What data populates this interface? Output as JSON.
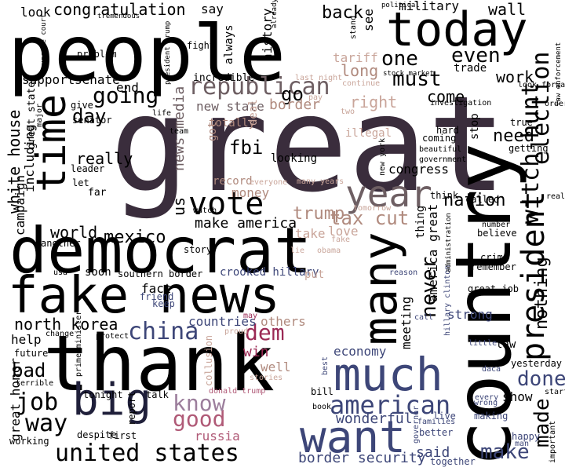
{
  "words": [
    {
      "text": "great",
      "color": "#3a2d3c"
    },
    {
      "text": "people",
      "color": "#000000"
    },
    {
      "text": "country",
      "color": "#000000"
    },
    {
      "text": "thank",
      "color": "#000000"
    },
    {
      "text": "democrat",
      "color": "#000000"
    },
    {
      "text": "fake news",
      "color": "#000000"
    },
    {
      "text": "today",
      "color": "#000000"
    },
    {
      "text": "many",
      "color": "#000000"
    },
    {
      "text": "much",
      "color": "#3d4678"
    },
    {
      "text": "want",
      "color": "#3d4678"
    },
    {
      "text": "big",
      "color": "#1f1f3a"
    },
    {
      "text": "time",
      "color": "#000000"
    },
    {
      "text": "year",
      "color": "#6e5f63"
    },
    {
      "text": "vote",
      "color": "#000000"
    },
    {
      "text": "president",
      "color": "#000000"
    },
    {
      "text": "united states",
      "color": "#000000"
    },
    {
      "text": "american",
      "color": "#3d4678"
    },
    {
      "text": "republican",
      "color": "#6e5f63"
    },
    {
      "text": "witch hunt",
      "color": "#000000"
    },
    {
      "text": "election",
      "color": "#000000"
    },
    {
      "text": "china",
      "color": "#3d4678"
    },
    {
      "text": "good",
      "color": "#b05a77"
    },
    {
      "text": "know",
      "color": "#9c7e9c"
    },
    {
      "text": "job",
      "color": "#000000"
    },
    {
      "text": "way",
      "color": "#000000"
    },
    {
      "text": "dem",
      "color": "#9b2a55"
    },
    {
      "text": "going",
      "color": "#000000"
    },
    {
      "text": "must",
      "color": "#000000"
    },
    {
      "text": "one",
      "color": "#000000"
    },
    {
      "text": "even",
      "color": "#000000"
    },
    {
      "text": "done",
      "color": "#3d4678"
    },
    {
      "text": "make",
      "color": "#3d4678"
    },
    {
      "text": "made",
      "color": "#000000"
    },
    {
      "text": "never",
      "color": "#000000"
    },
    {
      "text": "nothing",
      "color": "#000000"
    },
    {
      "text": "mexico",
      "color": "#000000"
    },
    {
      "text": "world",
      "color": "#000000"
    },
    {
      "text": "make america",
      "color": "#000000"
    },
    {
      "text": "tax cut",
      "color": "#b08a7e"
    },
    {
      "text": "trump",
      "color": "#b08a7e"
    },
    {
      "text": "nation",
      "color": "#000000"
    },
    {
      "text": "north korea",
      "color": "#000000"
    },
    {
      "text": "day",
      "color": "#000000"
    },
    {
      "text": "bad",
      "color": "#000000"
    },
    {
      "text": "congratulation",
      "color": "#000000"
    },
    {
      "text": "back",
      "color": "#000000"
    },
    {
      "text": "go",
      "color": "#000000"
    },
    {
      "text": "wall",
      "color": "#000000"
    },
    {
      "text": "military",
      "color": "#000000"
    },
    {
      "text": "work",
      "color": "#000000"
    },
    {
      "text": "need",
      "color": "#000000"
    },
    {
      "text": "come",
      "color": "#000000"
    },
    {
      "text": "long",
      "color": "#b08a7e"
    },
    {
      "text": "right",
      "color": "#c9a59a"
    },
    {
      "text": "border",
      "color": "#b08a7e"
    },
    {
      "text": "fbi",
      "color": "#000000"
    },
    {
      "text": "us",
      "color": "#000000"
    },
    {
      "text": "news media",
      "color": "#6e5f63"
    },
    {
      "text": "really",
      "color": "#000000"
    },
    {
      "text": "end",
      "color": "#000000"
    },
    {
      "text": "senate",
      "color": "#000000"
    },
    {
      "text": "support",
      "color": "#000000"
    },
    {
      "text": "look",
      "color": "#000000"
    },
    {
      "text": "say",
      "color": "#000000"
    },
    {
      "text": "history",
      "color": "#000000"
    },
    {
      "text": "see",
      "color": "#000000"
    },
    {
      "text": "tariff",
      "color": "#c9a59a"
    },
    {
      "text": "white house",
      "color": "#000000"
    },
    {
      "text": "campaign",
      "color": "#000000"
    },
    {
      "text": "including",
      "color": "#000000"
    },
    {
      "text": "money",
      "color": "#b08a7e"
    },
    {
      "text": "take",
      "color": "#c9a59a"
    },
    {
      "text": "love",
      "color": "#c9a59a"
    },
    {
      "text": "meeting",
      "color": "#000000"
    },
    {
      "text": "congress",
      "color": "#000000"
    },
    {
      "text": "america great",
      "color": "#000000"
    },
    {
      "text": "strong",
      "color": "#3d4678"
    },
    {
      "text": "said",
      "color": "#3d4678"
    },
    {
      "text": "border security",
      "color": "#3d4678"
    },
    {
      "text": "wonderful",
      "color": "#3d4678"
    },
    {
      "text": "economy",
      "color": "#3d4678"
    },
    {
      "text": "show",
      "color": "#000000"
    },
    {
      "text": "win",
      "color": "#9b2a55"
    },
    {
      "text": "well",
      "color": "#b08a7e"
    },
    {
      "text": "others",
      "color": "#b08a7e"
    },
    {
      "text": "countries",
      "color": "#3d4678"
    },
    {
      "text": "russia",
      "color": "#b05a77"
    },
    {
      "text": "fact",
      "color": "#000000"
    },
    {
      "text": "help",
      "color": "#000000"
    },
    {
      "text": "great honor",
      "color": "#000000"
    },
    {
      "text": "incredible",
      "color": "#000000"
    },
    {
      "text": "new state",
      "color": "#6e5f63"
    },
    {
      "text": "great state",
      "color": "#000000"
    },
    {
      "text": "give",
      "color": "#000000"
    },
    {
      "text": "senator",
      "color": "#000000"
    },
    {
      "text": "looking",
      "color": "#000000"
    },
    {
      "text": "totally",
      "color": "#b08a7e"
    },
    {
      "text": "record",
      "color": "#b08a7e"
    },
    {
      "text": "deal",
      "color": "#c9a59a"
    },
    {
      "text": "got",
      "color": "#b08a7e"
    },
    {
      "text": "illegal",
      "color": "#c9a59a"
    },
    {
      "text": "trade",
      "color": "#000000"
    },
    {
      "text": "stop",
      "color": "#000000"
    },
    {
      "text": "coming",
      "color": "#000000"
    },
    {
      "text": "hard",
      "color": "#000000"
    },
    {
      "text": "true",
      "color": "#000000"
    },
    {
      "text": "getting",
      "color": "#000000"
    },
    {
      "text": "called",
      "color": "#000000"
    },
    {
      "text": "think",
      "color": "#000000"
    },
    {
      "text": "believe",
      "color": "#000000"
    },
    {
      "text": "crime",
      "color": "#000000"
    },
    {
      "text": "remember",
      "color": "#000000"
    },
    {
      "text": "great job",
      "color": "#000000"
    },
    {
      "text": "always",
      "color": "#000000"
    },
    {
      "text": "problem",
      "color": "#000000"
    },
    {
      "text": "fight",
      "color": "#000000"
    },
    {
      "text": "southern border",
      "color": "#000000"
    },
    {
      "text": "story",
      "color": "#000000"
    },
    {
      "text": "crooked hillary",
      "color": "#3d4678"
    },
    {
      "text": "put",
      "color": "#c9a59a"
    },
    {
      "text": "soon",
      "color": "#000000"
    },
    {
      "text": "far",
      "color": "#000000"
    },
    {
      "text": "let",
      "color": "#000000"
    },
    {
      "text": "leader",
      "color": "#000000"
    },
    {
      "text": "another",
      "color": "#000000"
    },
    {
      "text": "friend",
      "color": "#3d4678"
    },
    {
      "text": "keep",
      "color": "#3d4678"
    },
    {
      "text": "thing",
      "color": "#000000"
    },
    {
      "text": "yesterday",
      "color": "#000000"
    },
    {
      "text": "law",
      "color": "#000000"
    },
    {
      "text": "future",
      "color": "#000000"
    },
    {
      "text": "talk",
      "color": "#000000"
    },
    {
      "text": "first",
      "color": "#000000"
    },
    {
      "text": "working",
      "color": "#000000"
    },
    {
      "text": "report",
      "color": "#000000"
    },
    {
      "text": "tonight",
      "color": "#000000"
    },
    {
      "text": "despite",
      "color": "#000000"
    },
    {
      "text": "bill",
      "color": "#000000"
    },
    {
      "text": "book",
      "color": "#000000"
    },
    {
      "text": "live",
      "color": "#3d4678"
    },
    {
      "text": "better",
      "color": "#3d4678"
    },
    {
      "text": "together",
      "color": "#3d4678"
    },
    {
      "text": "making",
      "color": "#3d4678"
    },
    {
      "text": "families",
      "color": "#3d4678"
    },
    {
      "text": "happy",
      "color": "#3d4678"
    },
    {
      "text": "start",
      "color": "#000000"
    },
    {
      "text": "order",
      "color": "#000000"
    },
    {
      "text": "real",
      "color": "#000000"
    },
    {
      "text": "look forward",
      "color": "#000000"
    },
    {
      "text": "law enforcement",
      "color": "#000000"
    },
    {
      "text": "investigation",
      "color": "#000000"
    },
    {
      "text": "beautiful",
      "color": "#000000"
    },
    {
      "text": "government",
      "color": "#000000"
    },
    {
      "text": "new york",
      "color": "#000000"
    },
    {
      "text": "number",
      "color": "#000000"
    },
    {
      "text": "little",
      "color": "#3d4678"
    },
    {
      "text": "daca",
      "color": "#3d4678"
    },
    {
      "text": "man",
      "color": "#3d4678"
    },
    {
      "text": "important",
      "color": "#000000"
    },
    {
      "text": "every",
      "color": "#3d4678"
    },
    {
      "text": "wrong",
      "color": "#3d4678"
    },
    {
      "text": "governor",
      "color": "#3d4678"
    },
    {
      "text": "best",
      "color": "#3d4678"
    },
    {
      "text": "hillary clinton",
      "color": "#3d4678"
    },
    {
      "text": "administration",
      "color": "#000000"
    },
    {
      "text": "reason",
      "color": "#3d4678"
    },
    {
      "text": "call",
      "color": "#3d4678"
    },
    {
      "text": "collusion",
      "color": "#c9a59a"
    },
    {
      "text": "donald trump",
      "color": "#b05a77"
    },
    {
      "text": "stories",
      "color": "#c9a59a"
    },
    {
      "text": "proud",
      "color": "#c9a59a"
    },
    {
      "text": "may",
      "color": "#9b2a55"
    },
    {
      "text": "lie",
      "color": "#c9a59a"
    },
    {
      "text": "obama",
      "color": "#c9a59a"
    },
    {
      "text": "fake",
      "color": "#c9a59a"
    },
    {
      "text": "many years",
      "color": "#c9a59a"
    },
    {
      "text": "everyone",
      "color": "#c9a59a"
    },
    {
      "text": "tomorrow",
      "color": "#c9a59a"
    },
    {
      "text": "pay",
      "color": "#c9a59a"
    },
    {
      "text": "two",
      "color": "#c9a59a"
    },
    {
      "text": "continue",
      "color": "#c9a59a"
    },
    {
      "text": "last night",
      "color": "#c9a59a"
    },
    {
      "text": "stock market",
      "color": "#000000"
    },
    {
      "text": "political",
      "color": "#000000"
    },
    {
      "text": "already",
      "color": "#000000"
    },
    {
      "text": "stand",
      "color": "#000000"
    },
    {
      "text": "president trump",
      "color": "#000000"
    },
    {
      "text": "supreme court",
      "color": "#000000"
    },
    {
      "text": "tremendous",
      "color": "#000000"
    },
    {
      "text": "usa",
      "color": "#000000"
    },
    {
      "text": "change",
      "color": "#000000"
    },
    {
      "text": "prime minister",
      "color": "#000000"
    },
    {
      "text": "protect",
      "color": "#000000"
    },
    {
      "text": "terrible",
      "color": "#000000"
    },
    {
      "text": "watch",
      "color": "#000000"
    },
    {
      "text": "team",
      "color": "#000000"
    },
    {
      "text": "life",
      "color": "#000000"
    },
    {
      "text": "major",
      "color": "#000000"
    }
  ]
}
